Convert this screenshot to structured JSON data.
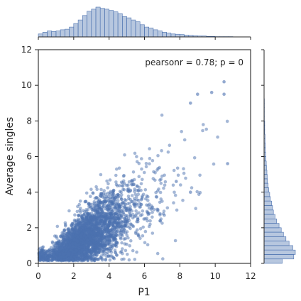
{
  "chart_data": {
    "type": "scatter",
    "subtype": "jointplot",
    "xlabel": "P1",
    "ylabel": "Average singles",
    "xlim": [
      0,
      12
    ],
    "ylim": [
      0,
      12
    ],
    "xticks": [
      "0",
      "2",
      "4",
      "6",
      "8",
      "10",
      "12"
    ],
    "yticks": [
      "0",
      "2",
      "4",
      "6",
      "8",
      "10",
      "12"
    ],
    "annotation": "pearsonr = 0.78; p = 0",
    "color": "#4c72b0",
    "marginal_x_hist": {
      "bin_edges_start": 0,
      "bin_width": 0.25,
      "counts": [
        10,
        16,
        20,
        18,
        20,
        24,
        26,
        33,
        45,
        57,
        72,
        86,
        93,
        100,
        96,
        93,
        89,
        84,
        78,
        68,
        64,
        57,
        51,
        41,
        33,
        30,
        24,
        20,
        16,
        13,
        10,
        9,
        8,
        6,
        5,
        4,
        3,
        3,
        2,
        2,
        1,
        1,
        1,
        1
      ]
    },
    "marginal_y_hist": {
      "bin_edges_start": 0,
      "bin_width": 0.25,
      "counts": [
        58,
        95,
        100,
        92,
        80,
        70,
        62,
        55,
        48,
        40,
        35,
        30,
        27,
        24,
        20,
        18,
        15,
        13,
        11,
        10,
        9,
        8,
        7,
        6,
        5,
        4,
        4,
        3,
        3,
        2,
        2,
        2,
        1,
        1,
        1,
        1,
        1
      ]
    },
    "points_sample": {
      "n": 3200,
      "trend": "y ≈ 0.6·x, spread increasing with x",
      "outliers": [
        [
          10.5,
          10.2
        ],
        [
          10.5,
          9.5
        ],
        [
          9.8,
          9.6
        ],
        [
          9.0,
          9.5
        ],
        [
          8.6,
          9.0
        ],
        [
          10.7,
          5.6
        ],
        [
          7.8,
          4.6
        ],
        [
          8.6,
          4.0
        ]
      ]
    }
  }
}
